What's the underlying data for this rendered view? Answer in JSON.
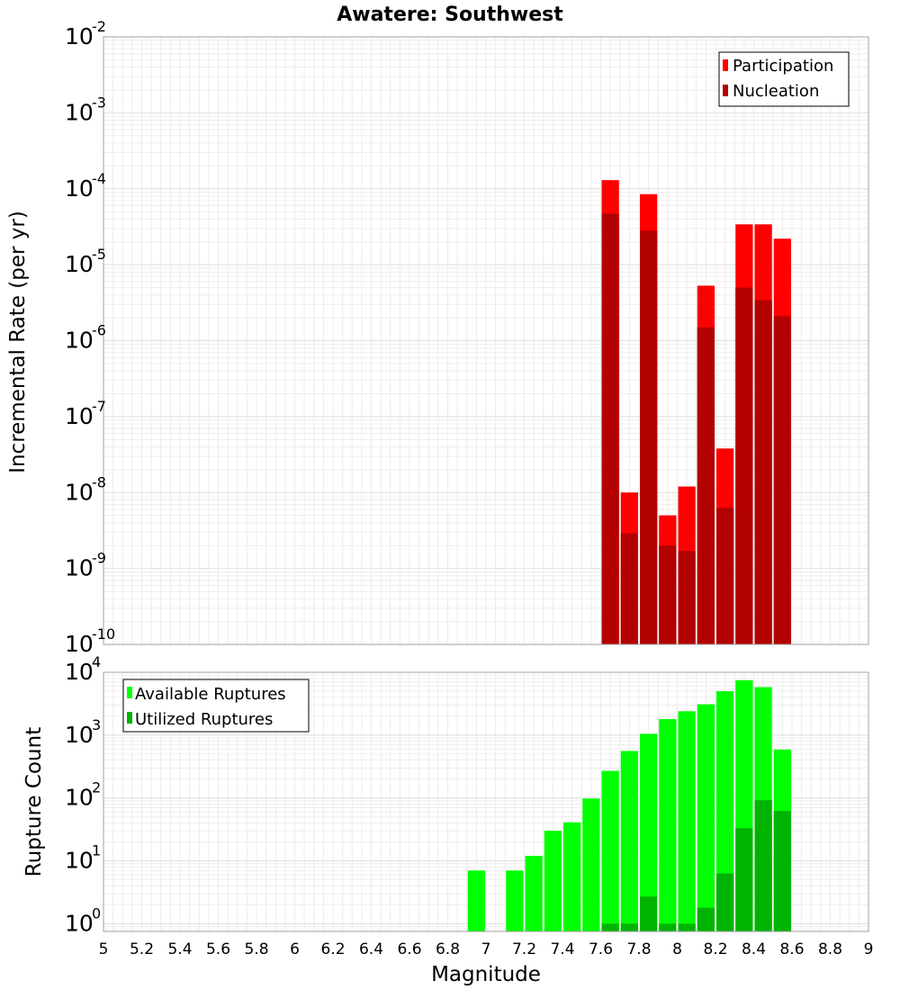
{
  "title": "Awatere: Southwest",
  "chart_data": [
    {
      "type": "bar",
      "title": "Awatere: Southwest",
      "xlabel": "Magnitude",
      "ylabel": "Incremental Rate (per yr)",
      "yscale": "log",
      "xlim": [
        5,
        9
      ],
      "ylim": [
        1e-10,
        0.01
      ],
      "ytick_base": "10",
      "ytick_exponents": [
        "-10",
        "-9",
        "-8",
        "-7",
        "-6",
        "-5",
        "-4",
        "-3",
        "-2"
      ],
      "grid": true,
      "legend_position": "top-right",
      "legend_entries": [
        "Participation",
        "Nucleation"
      ],
      "bin_width": 0.1,
      "x": [
        7.65,
        7.75,
        7.85,
        7.95,
        8.05,
        8.15,
        8.25,
        8.35,
        8.45,
        8.55
      ],
      "series": [
        {
          "name": "Participation",
          "color": "#ff0000",
          "values": [
            0.00013,
            1e-08,
            8.5e-05,
            5e-09,
            1.2e-08,
            5.3e-06,
            3.8e-08,
            3.4e-05,
            3.4e-05,
            2.2e-05
          ]
        },
        {
          "name": "Nucleation",
          "color": "#b30000",
          "values": [
            4.7e-05,
            2.9e-09,
            2.8e-05,
            2e-09,
            1.7e-09,
            1.5e-06,
            6.3e-09,
            5e-06,
            3.4e-06,
            2.1e-06
          ]
        }
      ]
    },
    {
      "type": "bar",
      "xlabel": "Magnitude",
      "ylabel": "Rupture Count",
      "yscale": "log",
      "xlim": [
        5,
        9
      ],
      "ylim": [
        0.75,
        10000
      ],
      "ytick_base": "10",
      "ytick_exponents": [
        "0",
        "1",
        "2",
        "3",
        "4"
      ],
      "xticks": [
        "5",
        "5.2",
        "5.4",
        "5.6",
        "5.8",
        "6",
        "6.2",
        "6.4",
        "6.6",
        "6.8",
        "7",
        "7.2",
        "7.4",
        "7.6",
        "7.8",
        "8",
        "8.2",
        "8.4",
        "8.6",
        "8.8",
        "9"
      ],
      "grid": true,
      "legend_position": "top-left",
      "legend_entries": [
        "Available Ruptures",
        "Utilized Ruptures"
      ],
      "bin_width": 0.1,
      "x": [
        6.95,
        7.15,
        7.25,
        7.35,
        7.45,
        7.55,
        7.65,
        7.75,
        7.85,
        7.95,
        8.05,
        8.15,
        8.25,
        8.35,
        8.45,
        8.55
      ],
      "series": [
        {
          "name": "Available Ruptures",
          "color": "#00ff00",
          "values": [
            7,
            7,
            12,
            30,
            41,
            98,
            270,
            560,
            1050,
            1800,
            2400,
            3100,
            5000,
            7500,
            5800,
            590
          ]
        },
        {
          "name": "Utilized Ruptures",
          "color": "#00b300",
          "values": [
            null,
            null,
            null,
            null,
            null,
            null,
            1,
            1,
            2.7,
            1,
            1,
            1.8,
            6.3,
            33,
            92,
            62
          ]
        }
      ]
    }
  ]
}
